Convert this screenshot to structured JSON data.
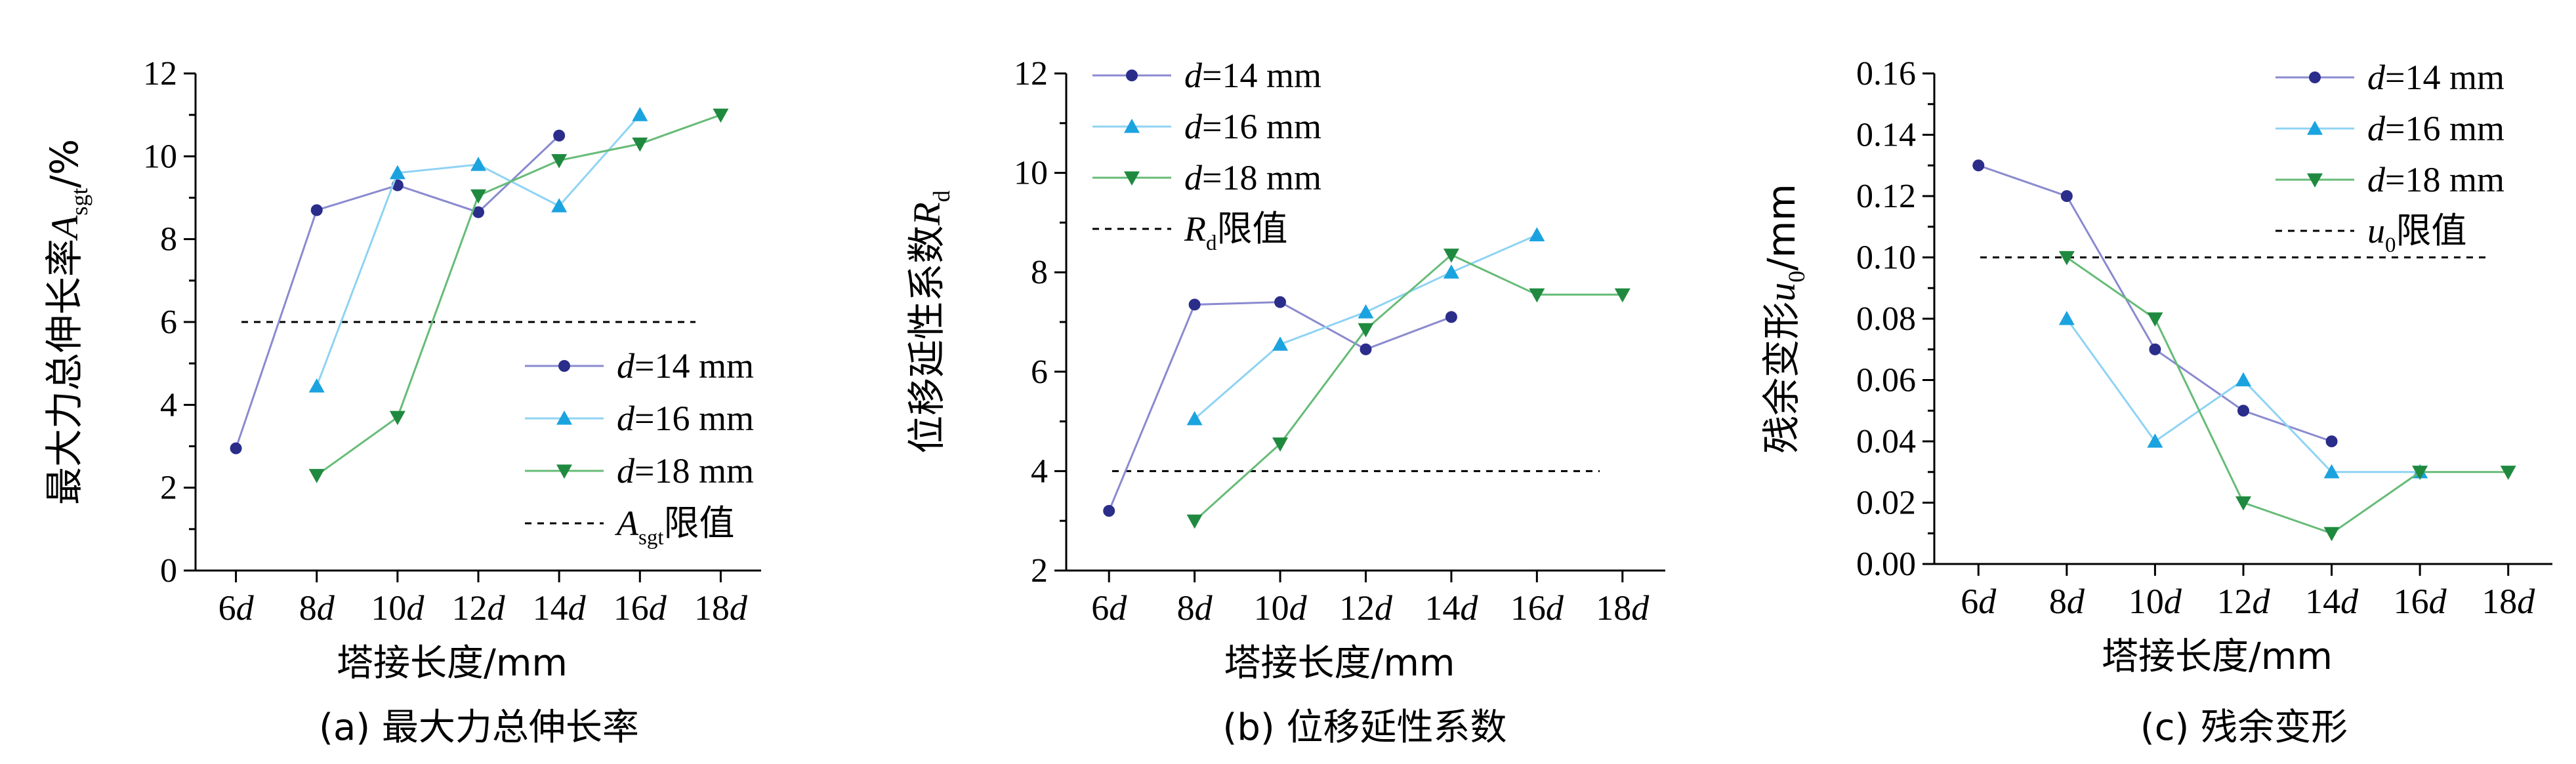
{
  "chart_data": [
    {
      "type": "line",
      "caption": "(a) 最大力总伸长率",
      "xlabel": "塔接长度/mm",
      "ylabel": "最大力总伸长率A_sgt/%",
      "ylabel_parts": {
        "pre": "最大力总伸长率",
        "sym": "A",
        "sub": "sgt",
        "post": "/%"
      },
      "categories": [
        "6d",
        "8d",
        "10d",
        "12d",
        "14d",
        "16d",
        "18d"
      ],
      "ylim": [
        0,
        12
      ],
      "yticks": [
        0,
        2,
        4,
        6,
        8,
        10,
        12
      ],
      "ytick_decimals": 0,
      "legend_position": "lower-right",
      "series": [
        {
          "name": "d=14 mm",
          "marker": "circle",
          "color": "#2b2d8a",
          "line_color": "#8a8ad0",
          "values": [
            2.95,
            8.7,
            9.3,
            8.65,
            10.5,
            null,
            null
          ]
        },
        {
          "name": "d=16 mm",
          "marker": "triangle-up",
          "color": "#1ba3e0",
          "line_color": "#8fd3f4",
          "values": [
            null,
            4.45,
            9.6,
            9.8,
            8.8,
            11.0,
            null
          ]
        },
        {
          "name": "d=18 mm",
          "marker": "triangle-down",
          "color": "#1f8a3f",
          "line_color": "#66bb77",
          "values": [
            null,
            2.3,
            3.7,
            9.05,
            9.9,
            10.3,
            11.0
          ]
        }
      ],
      "limit": {
        "value": 6,
        "label": "A_sgt限值",
        "label_parts": {
          "sym": "A",
          "sub": "sgt",
          "post": "限值"
        }
      }
    },
    {
      "type": "line",
      "caption": "(b) 位移延性系数",
      "xlabel": "塔接长度/mm",
      "ylabel": "位移延性系数R_d",
      "ylabel_parts": {
        "pre": "位移延性系数",
        "sym": "R",
        "sub": "d",
        "post": ""
      },
      "categories": [
        "6d",
        "8d",
        "10d",
        "12d",
        "14d",
        "16d",
        "18d"
      ],
      "ylim": [
        2,
        12
      ],
      "yticks": [
        2,
        4,
        6,
        8,
        10,
        12
      ],
      "ytick_decimals": 0,
      "legend_position": "top-left",
      "series": [
        {
          "name": "d=14 mm",
          "marker": "circle",
          "color": "#2b2d8a",
          "line_color": "#8a8ad0",
          "values": [
            3.2,
            7.35,
            7.4,
            6.45,
            7.1,
            null,
            null
          ]
        },
        {
          "name": "d=16 mm",
          "marker": "triangle-up",
          "color": "#1ba3e0",
          "line_color": "#8fd3f4",
          "values": [
            null,
            5.05,
            6.55,
            7.2,
            8.0,
            8.75,
            null
          ]
        },
        {
          "name": "d=18 mm",
          "marker": "triangle-down",
          "color": "#1f8a3f",
          "line_color": "#66bb77",
          "values": [
            null,
            3.0,
            4.55,
            6.85,
            8.35,
            7.55,
            7.55
          ]
        }
      ],
      "limit": {
        "value": 4,
        "label": "R_d限值",
        "label_parts": {
          "sym": "R",
          "sub": "d",
          "post": "限值"
        }
      }
    },
    {
      "type": "line",
      "caption": "(c) 残余变形",
      "xlabel": "塔接长度/mm",
      "ylabel": "残余变形u_0/mm",
      "ylabel_parts": {
        "pre": "残余变形",
        "sym": "u",
        "sub": "0",
        "post": "/mm"
      },
      "categories": [
        "6d",
        "8d",
        "10d",
        "12d",
        "14d",
        "16d",
        "18d"
      ],
      "ylim": [
        0,
        0.16
      ],
      "yticks": [
        0,
        0.02,
        0.04,
        0.06,
        0.08,
        0.1,
        0.12,
        0.14,
        0.16
      ],
      "ytick_decimals": 2,
      "legend_position": "top-right",
      "series": [
        {
          "name": "d=14 mm",
          "marker": "circle",
          "color": "#2b2d8a",
          "line_color": "#8a8ad0",
          "values": [
            0.13,
            0.12,
            0.07,
            0.05,
            0.04,
            null,
            null
          ]
        },
        {
          "name": "d=16 mm",
          "marker": "triangle-up",
          "color": "#1ba3e0",
          "line_color": "#8fd3f4",
          "values": [
            null,
            0.08,
            0.04,
            0.06,
            0.03,
            0.03,
            null
          ]
        },
        {
          "name": "d=18 mm",
          "marker": "triangle-down",
          "color": "#1f8a3f",
          "line_color": "#66bb77",
          "values": [
            null,
            0.1,
            0.08,
            0.02,
            0.01,
            0.03,
            0.03
          ]
        }
      ],
      "limit": {
        "value": 0.1,
        "label": "u_0限值",
        "label_parts": {
          "sym": "u",
          "sub": "0",
          "post": "限值"
        }
      }
    }
  ]
}
